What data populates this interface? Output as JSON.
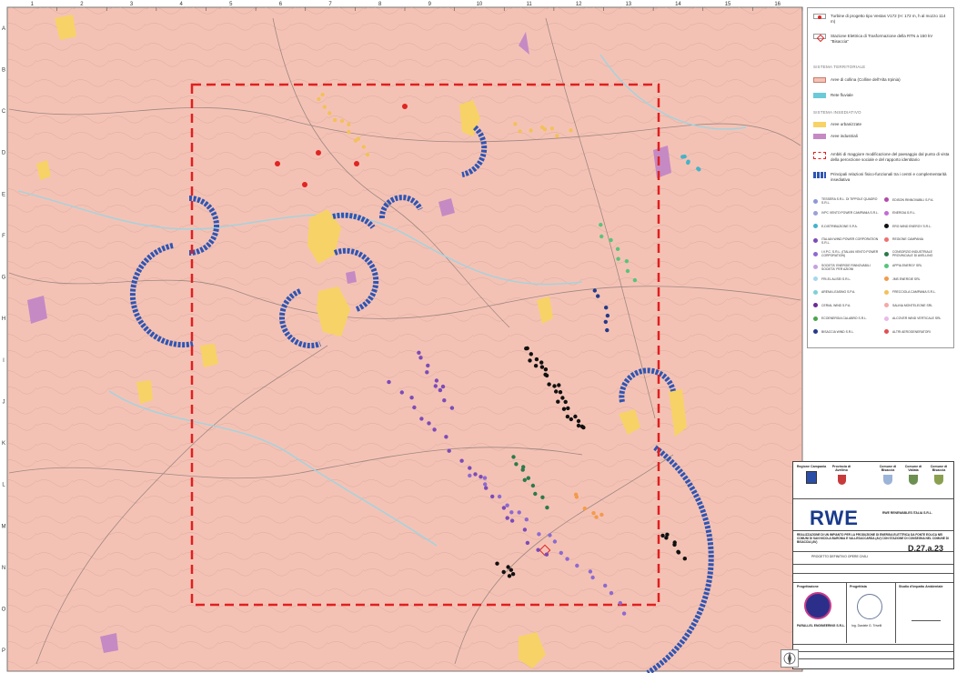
{
  "map": {
    "grid_columns": [
      "1",
      "2",
      "3",
      "4",
      "5",
      "6",
      "7",
      "8",
      "9",
      "10",
      "11",
      "12",
      "13",
      "14",
      "15",
      "16"
    ],
    "grid_rows": [
      "A",
      "B",
      "C",
      "D",
      "E",
      "F",
      "G",
      "H",
      "I",
      "J",
      "K",
      "L",
      "M",
      "N",
      "O",
      "P"
    ],
    "colors": {
      "hill_area": "#f4c2b5",
      "river": "#9fd4e0",
      "urban": "#f7d267",
      "industrial": "#c58ac4",
      "boundary": "#e02020",
      "relation": "#2f55b3",
      "turbine": "#e02424"
    }
  },
  "legend": {
    "turbine_label": "Turbine di progetto tipo Vestas V172 (H: 172 m, h al mozzo 114 m)",
    "station_label": "Stazione Elettrica di Trasformazione della RTN a 150 kV \"Bisaccia\"",
    "section_territorial": "SISTEMA TERRITORIALE",
    "hill_label": "Aree di collina (Colline dell'Alta Irpinia)",
    "river_label": "Rete fluviale",
    "section_settlement": "SISTEMA INSEDIATIVO",
    "urban_label": "Aree urbanizzate",
    "industrial_label": "Aree industriali",
    "boundary_label": "Ambiti di maggiore modificazione del paesaggio dal punto di vista della percezione sociale e del rapporto identitario",
    "relation_label": "Principali relazioni fisico-funzionali tra i centri e complementarità insediativa",
    "operators": [
      {
        "label": "TESSERA S.R.L. DI TIPPOLE QUADRO S.R.L.",
        "color": "#8e97d8"
      },
      {
        "label": "EDISON RINNOVABILI S.P.A.",
        "color": "#b44aa8"
      },
      {
        "label": "IVPC VENTO POWER CAMPANIA S.R.L.",
        "color": "#9aa0d8"
      },
      {
        "label": "ENERGIA S.R.L.",
        "color": "#c46ad8"
      },
      {
        "label": "E-DISTRIBUZIONE S.P.A.",
        "color": "#44b3c9"
      },
      {
        "label": "ERG WIND ENERGY S.R.L.",
        "color": "#111111"
      },
      {
        "label": "ITALIAN WIND POWER CORPORATION S.R.L.",
        "color": "#7b4cb8"
      },
      {
        "label": "REGIONE CAMPANIA",
        "color": "#f07070"
      },
      {
        "label": "I.V.P.C. S.R.L. (ITALIAN VENTO POWER CORPORATION)",
        "color": "#8c6ad0"
      },
      {
        "label": "CONSORZIO INDUSTRIALE PROVINCIALE DI AVELLINO",
        "color": "#2b7a4b"
      },
      {
        "label": "SOCIETA' ENERGIE RINNOVABILI SOCIETA' PER AZIONI",
        "color": "#c7a0e0"
      },
      {
        "label": "APPIA ENERGY SRL",
        "color": "#58c47a"
      },
      {
        "label": "FRI-EL ALISEI S.R.L.",
        "color": "#a7d7f0"
      },
      {
        "label": "JMS ENERGIE SRL",
        "color": "#f49a4a"
      },
      {
        "label": "ARENA LEASING S.P.A.",
        "color": "#7ed0d8"
      },
      {
        "label": "FRECCIOLA CAMPANIA S.R.L.",
        "color": "#f2c15a"
      },
      {
        "label": "CERIAL WIND S.P.A.",
        "color": "#6a2c98"
      },
      {
        "label": "SALINA MONTELEONE SRL",
        "color": "#f4a8a8"
      },
      {
        "label": "ECOENERGIA CALABRO S.R.L.",
        "color": "#4aa64a"
      },
      {
        "label": "ALCOVER WIND VERTICALE SRL",
        "color": "#e9b9e9"
      },
      {
        "label": "BISACCIA WIND S.R.L.",
        "color": "#243a8a"
      },
      {
        "label": "ALTRI AEROGENERATORI",
        "color": "#e05050"
      }
    ]
  },
  "titleblock": {
    "entity_1": "Regione Campania",
    "entity_2": "Provincia di Avellino",
    "entity_3": "Comune di Bisaccia",
    "entity_4": "Comune di Vallata",
    "entity_5": "Comune di Bisaccia",
    "client_name": "RWE",
    "client_company": "RWE RENEWABLES ITALIA S.R.L.",
    "project_title": "REALIZZAZIONE DI UN IMPIANTO PER LA PRODUZIONE DI ENERGIA ELETTRICA DA FONTE EOLICA NEI COMUNI DI SAN NICOLA BARONIA E VALLESACCARDA (AV) CON STAZIONE DI CONSEGNA NEL COMUNE DI BISACCIA (AV)",
    "doc_section": "PROGETTO DEFINITIVO OPERE CIVILI",
    "sheet_code": "D.27.a.23",
    "designer_label": "Progettazione",
    "designer_company": "PARALLEL ENGINEERING S.R.L.",
    "consultant_label": "Progettista",
    "consultant_name": "Ing. Daniele G. Trivelli",
    "approval_label": "Studio d'impatto Ambientale"
  }
}
